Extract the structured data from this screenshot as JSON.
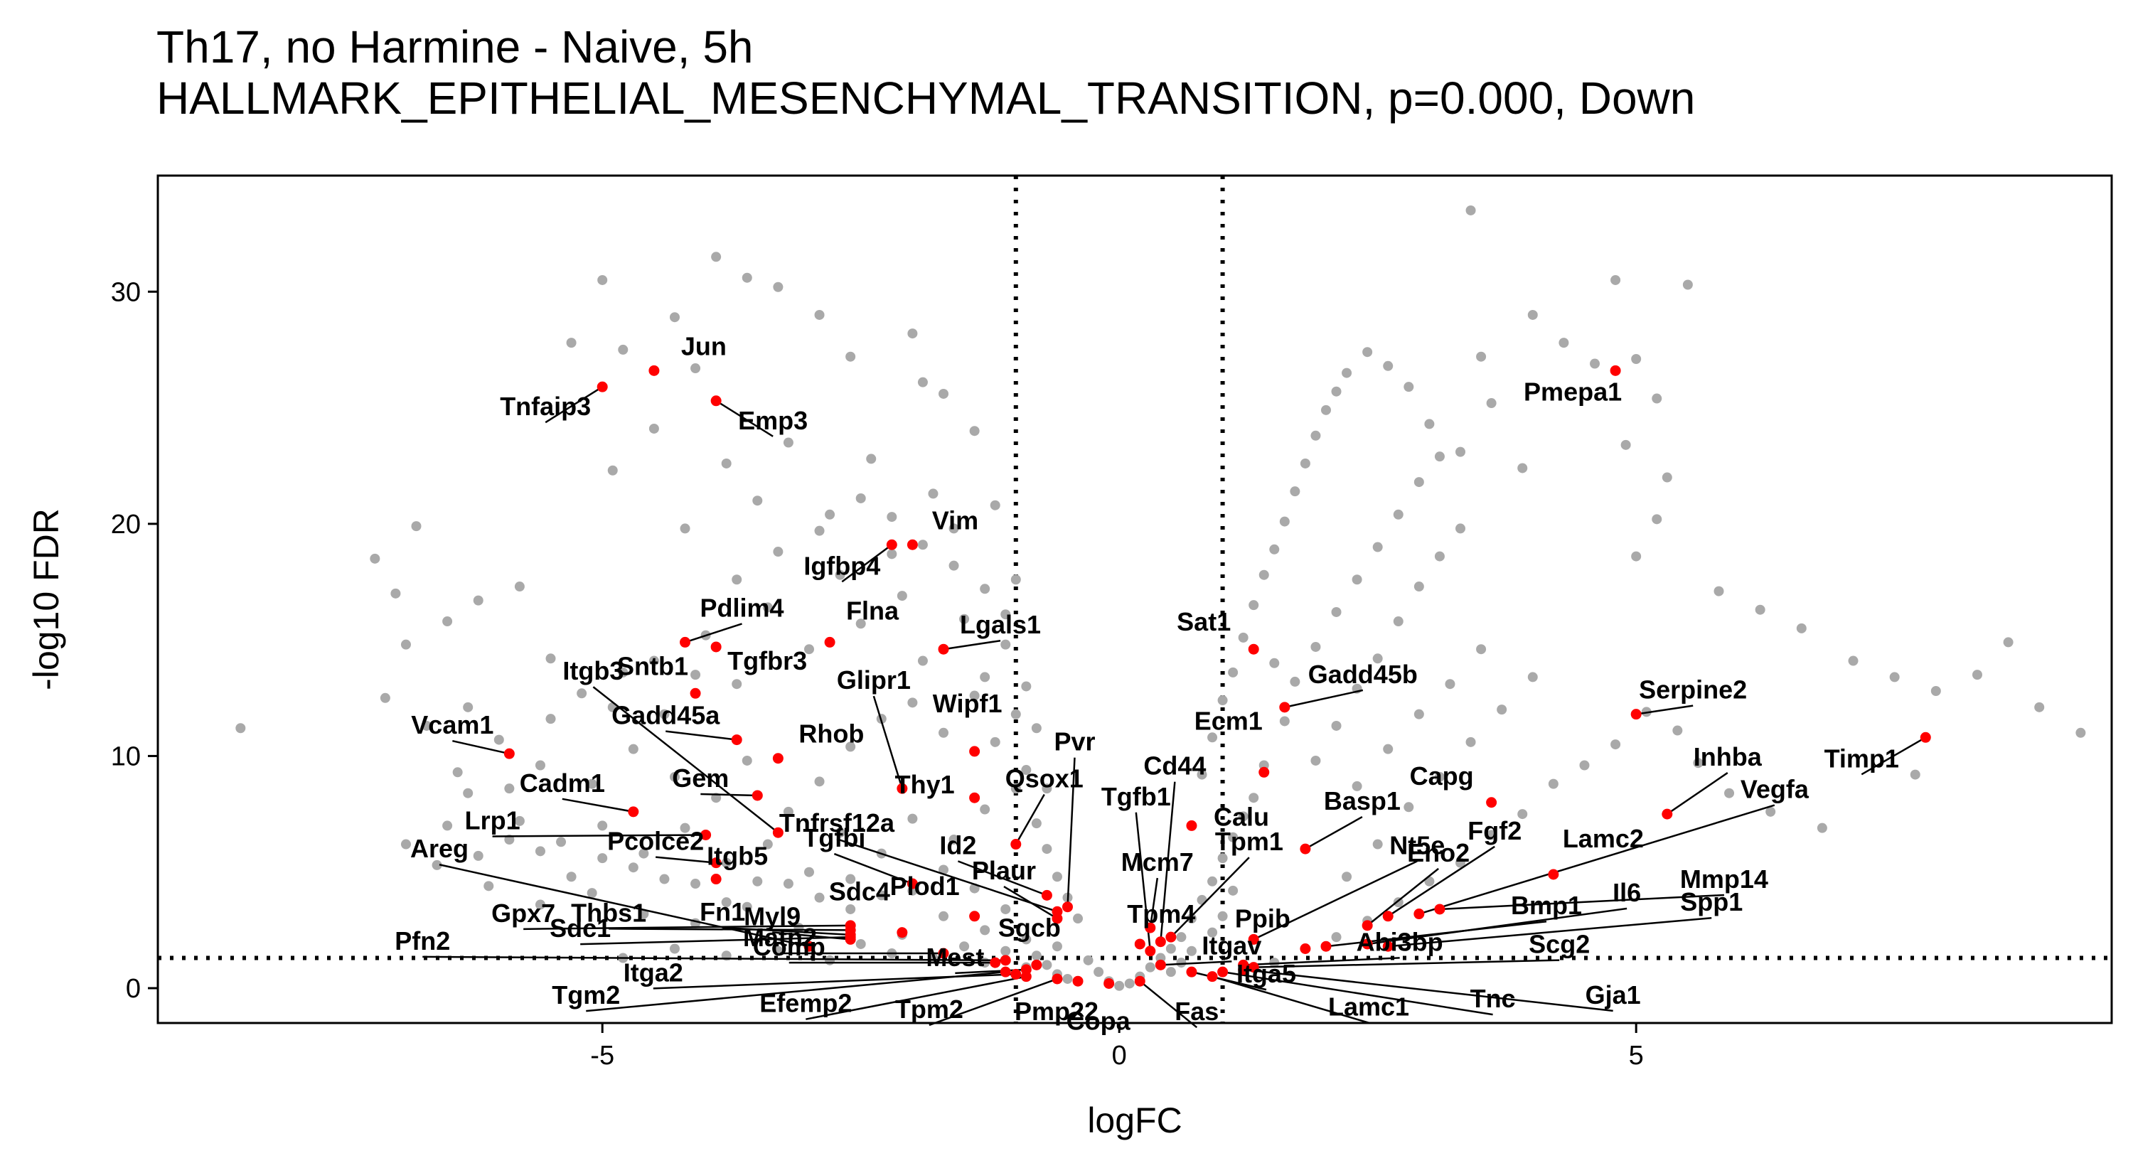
{
  "chart_data": {
    "type": "scatter",
    "title": "Th17, no Harmine - Naive, 5h",
    "subtitle": "HALLMARK_EPITHELIAL_MESENCHYMAL_TRANSITION, p=0.000, Down",
    "xlabel": "logFC",
    "ylabel": "-log10 FDR",
    "xlim": [
      -9.3,
      9.6
    ],
    "ylim": [
      -1.5,
      35
    ],
    "xticks": [
      -5,
      0,
      5
    ],
    "yticks": [
      0,
      10,
      20,
      30
    ],
    "xtick_labels": [
      "-5",
      "0",
      "5"
    ],
    "ytick_labels": [
      "0",
      "10",
      "20",
      "30"
    ],
    "reference_lines": {
      "vertical": [
        -1,
        1
      ],
      "horizontal": [
        1.3
      ],
      "style": "dotted"
    },
    "grid": false,
    "background_color": "#a9a9a9",
    "highlight_color": "#ff0000",
    "background_points": [
      [
        -8.5,
        11.2
      ],
      [
        -7.2,
        18.5
      ],
      [
        -7.0,
        17.0
      ],
      [
        -6.8,
        19.9
      ],
      [
        -6.9,
        14.8
      ],
      [
        -6.5,
        15.8
      ],
      [
        -6.2,
        16.7
      ],
      [
        -5.8,
        17.3
      ],
      [
        -5.3,
        27.8
      ],
      [
        -5.0,
        30.5
      ],
      [
        -4.8,
        27.5
      ],
      [
        -4.1,
        26.7
      ],
      [
        -3.6,
        30.6
      ],
      [
        -3.3,
        30.2
      ],
      [
        -2.9,
        29.0
      ],
      [
        -2.6,
        27.2
      ],
      [
        -2.0,
        28.2
      ],
      [
        -1.9,
        26.1
      ],
      [
        -1.7,
        25.6
      ],
      [
        -1.4,
        24.0
      ],
      [
        -3.9,
        31.5
      ],
      [
        -4.3,
        28.9
      ],
      [
        -4.9,
        22.3
      ],
      [
        -4.5,
        24.1
      ],
      [
        -4.2,
        19.8
      ],
      [
        -3.8,
        22.6
      ],
      [
        -3.5,
        21.0
      ],
      [
        -3.2,
        23.5
      ],
      [
        -2.8,
        20.4
      ],
      [
        -2.4,
        22.8
      ],
      [
        -2.2,
        18.7
      ],
      [
        -1.8,
        21.3
      ],
      [
        -1.6,
        19.8
      ],
      [
        -1.2,
        20.8
      ],
      [
        -1.0,
        17.6
      ],
      [
        -5.5,
        14.2
      ],
      [
        -5.2,
        12.7
      ],
      [
        -4.8,
        13.6
      ],
      [
        -4.4,
        11.8
      ],
      [
        -4.0,
        15.2
      ],
      [
        -3.7,
        13.1
      ],
      [
        -3.4,
        16.4
      ],
      [
        -3.0,
        14.6
      ],
      [
        -2.7,
        17.8
      ],
      [
        -2.5,
        15.7
      ],
      [
        -2.1,
        16.9
      ],
      [
        -1.9,
        14.1
      ],
      [
        -1.5,
        15.9
      ],
      [
        -1.3,
        13.4
      ],
      [
        -1.1,
        14.8
      ],
      [
        -6.3,
        12.1
      ],
      [
        -6.0,
        10.7
      ],
      [
        -5.6,
        9.6
      ],
      [
        -5.1,
        8.8
      ],
      [
        -4.7,
        10.3
      ],
      [
        -4.3,
        9.1
      ],
      [
        -3.9,
        8.2
      ],
      [
        -3.6,
        9.8
      ],
      [
        -3.2,
        7.6
      ],
      [
        -2.9,
        8.9
      ],
      [
        -2.6,
        10.4
      ],
      [
        -2.3,
        11.6
      ],
      [
        -2.0,
        12.3
      ],
      [
        -1.7,
        11.0
      ],
      [
        -1.4,
        12.6
      ],
      [
        -1.2,
        10.6
      ],
      [
        -1.0,
        11.8
      ],
      [
        -7.1,
        12.5
      ],
      [
        -6.7,
        11.3
      ],
      [
        -6.3,
        8.4
      ],
      [
        -5.8,
        7.2
      ],
      [
        -5.4,
        6.3
      ],
      [
        -5.0,
        7.0
      ],
      [
        -4.6,
        5.8
      ],
      [
        -4.2,
        6.9
      ],
      [
        -3.8,
        5.4
      ],
      [
        -3.4,
        6.2
      ],
      [
        -3.0,
        5.0
      ],
      [
        -2.7,
        6.7
      ],
      [
        -2.3,
        5.8
      ],
      [
        -2.0,
        7.3
      ],
      [
        -1.6,
        6.4
      ],
      [
        -1.3,
        7.7
      ],
      [
        -1.0,
        8.6
      ],
      [
        -0.9,
        9.4
      ],
      [
        -0.8,
        7.1
      ],
      [
        -0.7,
        6.0
      ],
      [
        -0.6,
        4.8
      ],
      [
        -0.5,
        3.9
      ],
      [
        -0.4,
        3.0
      ],
      [
        -6.6,
        5.3
      ],
      [
        -6.1,
        4.4
      ],
      [
        -5.6,
        3.6
      ],
      [
        -5.1,
        4.1
      ],
      [
        -4.6,
        3.2
      ],
      [
        -4.1,
        2.8
      ],
      [
        -3.6,
        3.5
      ],
      [
        -3.1,
        2.6
      ],
      [
        -2.6,
        3.4
      ],
      [
        -2.1,
        2.3
      ],
      [
        -1.7,
        3.1
      ],
      [
        -1.3,
        2.5
      ],
      [
        -0.9,
        2.1
      ],
      [
        -0.6,
        1.8
      ],
      [
        -0.3,
        1.2
      ],
      [
        -0.2,
        0.7
      ],
      [
        -0.1,
        0.3
      ],
      [
        0.0,
        0.1
      ],
      [
        0.1,
        0.2
      ],
      [
        0.2,
        0.5
      ],
      [
        0.3,
        0.9
      ],
      [
        0.4,
        1.3
      ],
      [
        0.5,
        1.7
      ],
      [
        0.6,
        2.2
      ],
      [
        0.7,
        3.0
      ],
      [
        0.8,
        3.8
      ],
      [
        0.9,
        4.6
      ],
      [
        1.0,
        5.6
      ],
      [
        1.1,
        6.5
      ],
      [
        1.2,
        7.4
      ],
      [
        0.8,
        9.2
      ],
      [
        0.9,
        10.8
      ],
      [
        1.0,
        12.4
      ],
      [
        1.1,
        13.6
      ],
      [
        1.2,
        15.1
      ],
      [
        1.3,
        16.5
      ],
      [
        1.4,
        17.8
      ],
      [
        1.5,
        18.9
      ],
      [
        1.6,
        20.1
      ],
      [
        1.7,
        21.4
      ],
      [
        1.8,
        22.6
      ],
      [
        1.9,
        23.8
      ],
      [
        2.0,
        24.9
      ],
      [
        2.1,
        25.7
      ],
      [
        2.2,
        26.5
      ],
      [
        2.4,
        27.4
      ],
      [
        2.6,
        26.8
      ],
      [
        2.8,
        25.9
      ],
      [
        3.0,
        24.3
      ],
      [
        3.3,
        23.1
      ],
      [
        3.6,
        25.2
      ],
      [
        3.9,
        22.4
      ],
      [
        3.5,
        27.2
      ],
      [
        3.4,
        33.5
      ],
      [
        4.0,
        29.0
      ],
      [
        4.3,
        27.8
      ],
      [
        4.6,
        26.9
      ],
      [
        4.8,
        30.5
      ],
      [
        5.0,
        27.1
      ],
      [
        5.2,
        25.4
      ],
      [
        5.5,
        30.3
      ],
      [
        4.9,
        23.4
      ],
      [
        5.3,
        22.0
      ],
      [
        5.2,
        20.2
      ],
      [
        5.0,
        18.6
      ],
      [
        5.8,
        17.1
      ],
      [
        6.2,
        16.3
      ],
      [
        6.6,
        15.5
      ],
      [
        7.1,
        14.1
      ],
      [
        7.5,
        13.4
      ],
      [
        7.9,
        12.8
      ],
      [
        8.3,
        13.5
      ],
      [
        8.6,
        14.9
      ],
      [
        8.9,
        12.1
      ],
      [
        9.3,
        11.0
      ],
      [
        7.7,
        9.2
      ],
      [
        6.8,
        6.9
      ],
      [
        6.3,
        7.6
      ],
      [
        5.9,
        8.4
      ],
      [
        5.6,
        9.7
      ],
      [
        5.4,
        11.1
      ],
      [
        5.1,
        11.9
      ],
      [
        4.8,
        10.5
      ],
      [
        4.5,
        9.6
      ],
      [
        4.2,
        8.8
      ],
      [
        3.9,
        7.5
      ],
      [
        3.6,
        6.6
      ],
      [
        3.3,
        5.4
      ],
      [
        3.0,
        4.6
      ],
      [
        2.7,
        3.7
      ],
      [
        2.4,
        2.9
      ],
      [
        2.1,
        2.2
      ],
      [
        1.8,
        1.7
      ],
      [
        1.5,
        1.1
      ],
      [
        2.2,
        4.8
      ],
      [
        2.5,
        6.2
      ],
      [
        2.8,
        7.8
      ],
      [
        3.1,
        9.1
      ],
      [
        3.4,
        10.6
      ],
      [
        3.7,
        12.0
      ],
      [
        4.0,
        13.4
      ],
      [
        2.3,
        8.7
      ],
      [
        2.6,
        10.3
      ],
      [
        2.9,
        11.8
      ],
      [
        3.2,
        13.1
      ],
      [
        3.5,
        14.6
      ],
      [
        1.9,
        9.8
      ],
      [
        2.1,
        11.3
      ],
      [
        2.3,
        12.9
      ],
      [
        2.5,
        14.2
      ],
      [
        2.7,
        15.8
      ],
      [
        2.9,
        17.3
      ],
      [
        3.1,
        18.6
      ],
      [
        3.3,
        19.8
      ],
      [
        1.7,
        13.2
      ],
      [
        1.9,
        14.7
      ],
      [
        2.1,
        16.2
      ],
      [
        2.3,
        17.6
      ],
      [
        2.5,
        19.0
      ],
      [
        2.7,
        20.4
      ],
      [
        2.9,
        21.8
      ],
      [
        3.1,
        22.9
      ],
      [
        1.5,
        14.0
      ],
      [
        1.6,
        11.5
      ],
      [
        1.4,
        9.6
      ],
      [
        1.3,
        8.2
      ],
      [
        1.1,
        4.2
      ],
      [
        1.0,
        3.1
      ],
      [
        0.9,
        2.4
      ],
      [
        0.7,
        1.6
      ],
      [
        0.6,
        1.1
      ],
      [
        0.5,
        0.7
      ],
      [
        -0.5,
        0.4
      ],
      [
        -0.6,
        0.6
      ],
      [
        -0.7,
        1.0
      ],
      [
        -0.8,
        1.4
      ],
      [
        -0.9,
        0.9
      ],
      [
        -1.1,
        1.6
      ],
      [
        -1.3,
        1.1
      ],
      [
        -1.5,
        1.8
      ],
      [
        -1.8,
        1.3
      ],
      [
        -2.2,
        1.5
      ],
      [
        -2.5,
        1.9
      ],
      [
        -2.8,
        1.2
      ],
      [
        -3.3,
        1.6
      ],
      [
        -3.8,
        1.4
      ],
      [
        -4.3,
        1.7
      ],
      [
        -4.8,
        1.3
      ],
      [
        -1.1,
        3.4
      ],
      [
        -1.4,
        4.3
      ],
      [
        -1.7,
        5.1
      ],
      [
        -2.0,
        4.2
      ],
      [
        -2.3,
        4.0
      ],
      [
        -2.6,
        4.7
      ],
      [
        -2.9,
        3.9
      ],
      [
        -3.2,
        4.5
      ],
      [
        -3.5,
        4.6
      ],
      [
        -3.8,
        3.7
      ],
      [
        -4.1,
        4.5
      ],
      [
        -4.4,
        4.7
      ],
      [
        -4.7,
        5.2
      ],
      [
        -5.0,
        5.6
      ],
      [
        -5.3,
        4.8
      ],
      [
        -5.6,
        5.9
      ],
      [
        -5.9,
        6.4
      ],
      [
        -6.2,
        5.7
      ],
      [
        -6.5,
        7.0
      ],
      [
        -6.9,
        6.2
      ],
      [
        -6.4,
        9.3
      ],
      [
        -5.9,
        8.6
      ],
      [
        -5.5,
        11.6
      ],
      [
        -4.9,
        12.1
      ],
      [
        -4.5,
        14.1
      ],
      [
        -4.1,
        13.5
      ],
      [
        -3.7,
        17.6
      ],
      [
        -3.3,
        18.8
      ],
      [
        -2.9,
        19.7
      ],
      [
        -2.5,
        21.1
      ],
      [
        -2.2,
        20.3
      ],
      [
        -1.9,
        19.1
      ],
      [
        -1.6,
        18.2
      ],
      [
        -1.3,
        17.2
      ],
      [
        -1.1,
        16.1
      ],
      [
        -0.9,
        13.0
      ],
      [
        -0.8,
        11.2
      ],
      [
        -0.7,
        8.6
      ]
    ],
    "highlighted_points": [
      {
        "label": "Jun",
        "x": -4.5,
        "y": 26.6
      },
      {
        "label": "Tnfaip3",
        "x": -5.0,
        "y": 25.9
      },
      {
        "label": "Emp3",
        "x": -3.9,
        "y": 25.3
      },
      {
        "label": "Pmepa1",
        "x": 4.8,
        "y": 26.6
      },
      {
        "label": "Vim",
        "x": -2.0,
        "y": 19.1
      },
      {
        "label": "Igfbp4",
        "x": -2.2,
        "y": 19.1
      },
      {
        "label": "Pdlim4",
        "x": -4.2,
        "y": 14.9
      },
      {
        "label": "Flna",
        "x": -2.8,
        "y": 14.9
      },
      {
        "label": "Lgals1",
        "x": -1.7,
        "y": 14.6
      },
      {
        "label": "Sat1",
        "x": 1.3,
        "y": 14.6
      },
      {
        "label": "Tgfbr3",
        "x": -3.9,
        "y": 14.7
      },
      {
        "label": "Sntb1",
        "x": -4.1,
        "y": 12.7
      },
      {
        "label": "Itgb3",
        "x": -3.3,
        "y": 6.7
      },
      {
        "label": "Glipr1",
        "x": -2.1,
        "y": 8.6
      },
      {
        "label": "Gadd45b",
        "x": 1.6,
        "y": 12.1
      },
      {
        "label": "Serpine2",
        "x": 5.0,
        "y": 11.8
      },
      {
        "label": "Timp1",
        "x": 7.8,
        "y": 10.8
      },
      {
        "label": "Vcam1",
        "x": -5.9,
        "y": 10.1
      },
      {
        "label": "Gadd45a",
        "x": -3.7,
        "y": 10.7
      },
      {
        "label": "Rhob",
        "x": -3.3,
        "y": 9.9
      },
      {
        "label": "Wipf1",
        "x": -1.4,
        "y": 10.2
      },
      {
        "label": "Pvr",
        "x": -0.5,
        "y": 3.5
      },
      {
        "label": "Ecm1",
        "x": 1.4,
        "y": 9.3
      },
      {
        "label": "Gem",
        "x": -3.5,
        "y": 8.3
      },
      {
        "label": "Thy1",
        "x": -1.4,
        "y": 8.2
      },
      {
        "label": "Qsox1",
        "x": -1.0,
        "y": 6.2
      },
      {
        "label": "Cd44",
        "x": 0.4,
        "y": 2.0
      },
      {
        "label": "Nt5e",
        "x": 1.3,
        "y": 2.1
      },
      {
        "label": "Capg",
        "x": 3.6,
        "y": 8.0
      },
      {
        "label": "Cadm1",
        "x": -4.7,
        "y": 7.6
      },
      {
        "label": "Inhba",
        "x": 5.3,
        "y": 7.5
      },
      {
        "label": "Vegfa",
        "x": 2.9,
        "y": 3.2
      },
      {
        "label": "Areg",
        "x": -3.0,
        "y": 1.8
      },
      {
        "label": "Tnfrsf12a",
        "x": -0.6,
        "y": 3.3
      },
      {
        "label": "Tgfb1",
        "x": 0.3,
        "y": 1.6
      },
      {
        "label": "Calu",
        "x": 0.7,
        "y": 7.0
      },
      {
        "label": "Basp1",
        "x": 1.8,
        "y": 6.0
      },
      {
        "label": "Fgf2",
        "x": 2.6,
        "y": 3.1
      },
      {
        "label": "Lrp1",
        "x": -4.0,
        "y": 6.6
      },
      {
        "label": "Pcolce2",
        "x": -3.9,
        "y": 5.4
      },
      {
        "label": "Itgb5",
        "x": -3.9,
        "y": 4.7
      },
      {
        "label": "Id2",
        "x": -0.7,
        "y": 4.0
      },
      {
        "label": "Mcm7",
        "x": 0.3,
        "y": 2.6
      },
      {
        "label": "Lamc2",
        "x": 4.2,
        "y": 4.9
      },
      {
        "label": "Mmp14",
        "x": 3.1,
        "y": 3.4
      },
      {
        "label": "Tgfbi",
        "x": -2.0,
        "y": 4.5
      },
      {
        "label": "Tpm1",
        "x": 0.5,
        "y": 2.2
      },
      {
        "label": "Eno2",
        "x": 2.4,
        "y": 2.7
      },
      {
        "label": "Gpx7",
        "x": -2.6,
        "y": 2.7
      },
      {
        "label": "Thbs1",
        "x": -2.6,
        "y": 2.5
      },
      {
        "label": "Fn1",
        "x": -2.6,
        "y": 2.3
      },
      {
        "label": "Myl9",
        "x": -2.6,
        "y": 2.1
      },
      {
        "label": "Plaur",
        "x": -0.6,
        "y": 3.0
      },
      {
        "label": "Ppib",
        "x": 1.8,
        "y": 1.7
      },
      {
        "label": "Bmp1",
        "x": 2.0,
        "y": 1.8
      },
      {
        "label": "Il6",
        "x": 2.4,
        "y": 1.9
      },
      {
        "label": "Spp1",
        "x": 2.6,
        "y": 1.8
      },
      {
        "label": "Sdc4",
        "x": -2.1,
        "y": 2.4
      },
      {
        "label": "Plod1",
        "x": -1.4,
        "y": 3.1
      },
      {
        "label": "Tpm4",
        "x": 0.2,
        "y": 1.9
      },
      {
        "label": "Sdc1",
        "x": -2.6,
        "y": 2.2
      },
      {
        "label": "Matn2",
        "x": -1.7,
        "y": 1.5
      },
      {
        "label": "Sgcb",
        "x": -0.8,
        "y": 1.0
      },
      {
        "label": "Itgav",
        "x": 0.4,
        "y": 1.0
      },
      {
        "label": "Abi3bp",
        "x": 1.2,
        "y": 1.0
      },
      {
        "label": "Scg2",
        "x": 1.3,
        "y": 0.9
      },
      {
        "label": "Pfn2",
        "x": -1.1,
        "y": 1.2
      },
      {
        "label": "Comp",
        "x": -1.2,
        "y": 1.1
      },
      {
        "label": "Mest",
        "x": -0.9,
        "y": 0.8
      },
      {
        "label": "Itga2",
        "x": -1.0,
        "y": 0.6
      },
      {
        "label": "Itga5",
        "x": 0.7,
        "y": 0.7
      },
      {
        "label": "Tgm2",
        "x": -1.1,
        "y": 0.7
      },
      {
        "label": "Efemp2",
        "x": -0.9,
        "y": 0.5
      },
      {
        "label": "Tpm2",
        "x": -0.6,
        "y": 0.4
      },
      {
        "label": "Pmp22",
        "x": -0.4,
        "y": 0.3
      },
      {
        "label": "Copa",
        "x": -0.1,
        "y": 0.2
      },
      {
        "label": "Fas",
        "x": 0.2,
        "y": 0.3
      },
      {
        "label": "Lamc1",
        "x": 0.9,
        "y": 0.5
      },
      {
        "label": "Tnc",
        "x": 1.0,
        "y": 0.7
      },
      {
        "label": "Gja1",
        "x": 1.2,
        "y": 0.8
      }
    ]
  }
}
